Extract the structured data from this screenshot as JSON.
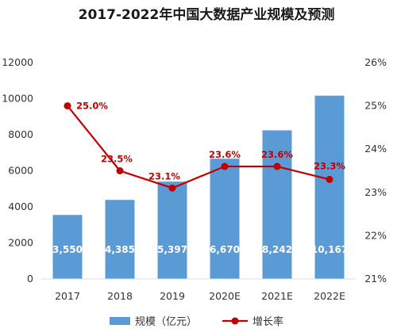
{
  "chart_data": {
    "type": "bar",
    "title": "2017-2022年中国大数据产业规模及预测",
    "categories": [
      "2017",
      "2018",
      "2019",
      "2020E",
      "2021E",
      "2022E"
    ],
    "series": [
      {
        "name": "规模（亿元）",
        "type": "bar",
        "axis": "left",
        "color": "#5b9bd5",
        "values": [
          3550,
          4385,
          5397,
          6670,
          8242,
          10167
        ],
        "labels": [
          "3,550",
          "4,385",
          "5,397",
          "6,670",
          "8,242",
          "10,167"
        ]
      },
      {
        "name": "增长率",
        "type": "line",
        "axis": "right",
        "color": "#c00000",
        "values": [
          25.0,
          23.5,
          23.1,
          23.6,
          23.6,
          23.3
        ],
        "labels": [
          "25.0%",
          "23.5%",
          "23.1%",
          "23.6%",
          "23.6%",
          "23.3%"
        ]
      }
    ],
    "y_left": {
      "min": 0,
      "max": 12000,
      "step": 2000,
      "ticks": [
        "0",
        "2000",
        "4000",
        "6000",
        "8000",
        "10000",
        "12000"
      ]
    },
    "y_right": {
      "min": 21,
      "max": 26,
      "step": 1,
      "ticks": [
        "21%",
        "22%",
        "23%",
        "24%",
        "25%",
        "26%"
      ]
    },
    "grid": false,
    "legend_position": "bottom"
  }
}
